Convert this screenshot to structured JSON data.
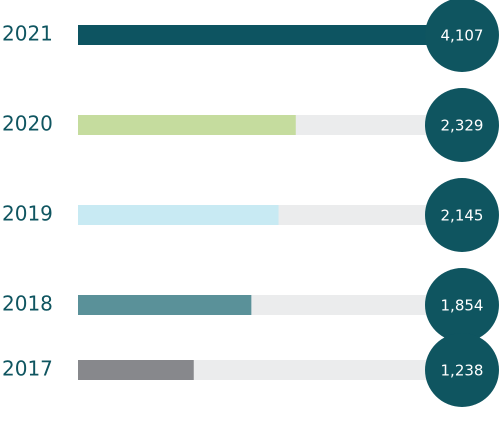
{
  "chart_data": {
    "type": "bar",
    "orientation": "horizontal",
    "categories": [
      "2021",
      "2020",
      "2019",
      "2018",
      "2017"
    ],
    "values": [
      4107,
      2329,
      2145,
      1854,
      1238
    ],
    "value_labels": [
      "4,107",
      "2,329",
      "2,145",
      "1,854",
      "1,238"
    ],
    "colors": [
      "#0d5461",
      "#c5dc9e",
      "#c8eaf3",
      "#5a9199",
      "#87888c"
    ],
    "xlim": [
      0,
      4107
    ]
  }
}
